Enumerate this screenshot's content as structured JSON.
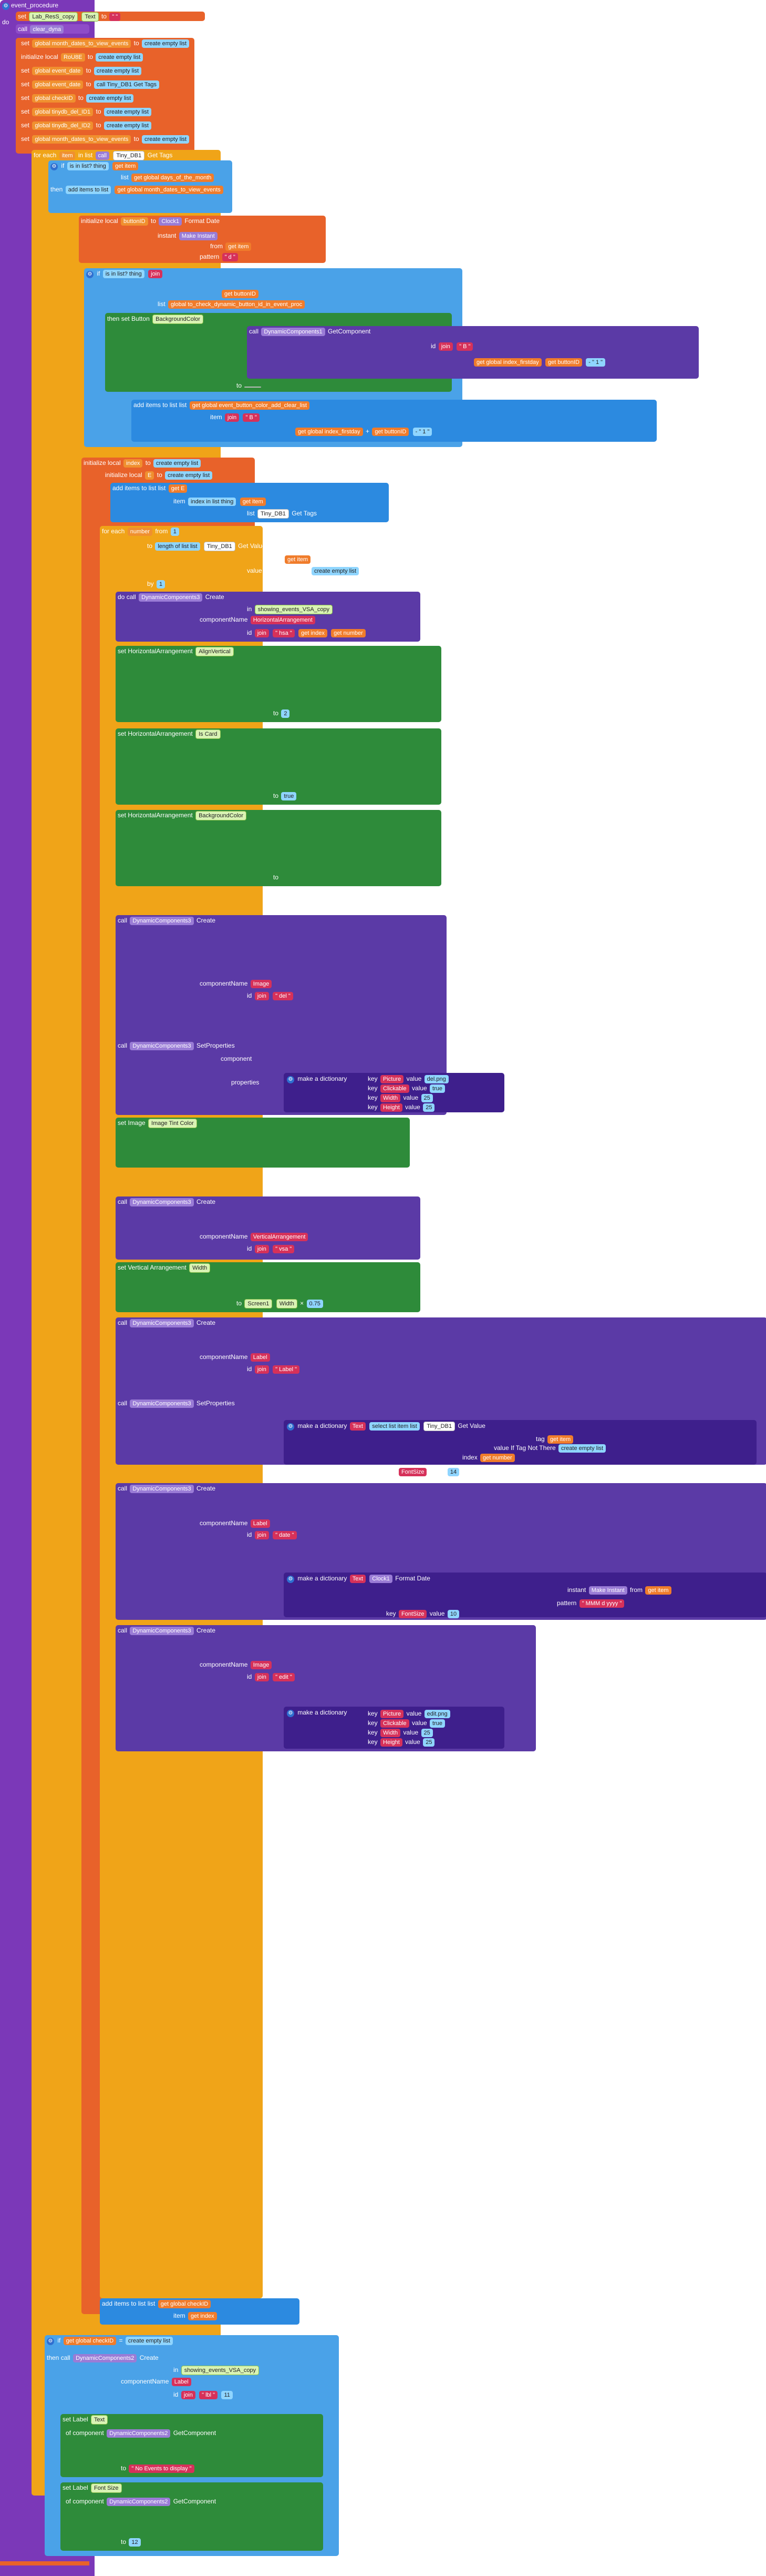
{
  "proc": {
    "title": "event_procedure",
    "do": "do",
    "set_label": "set",
    "set_list_view": "Lab_ResS_copy",
    "set_prop": "Text",
    "set_to": "to",
    "set_val": "\" \"",
    "call_clear": "call",
    "clear_dyna": "clear_dyna"
  },
  "init": [
    {
      "label": "set",
      "var": "global month_dates_to_view_events",
      "to": "to",
      "val": "create empty list"
    },
    {
      "label": "initialize local",
      "var": "RoU8E",
      "to": "to",
      "val": "create empty list"
    },
    {
      "label": "set",
      "var": "global event_date",
      "to": "to",
      "val": "create empty list"
    },
    {
      "label": "set",
      "var": "global event_date",
      "to": "to",
      "val": "call Tiny_DB1 Get Tags"
    },
    {
      "label": "set",
      "var": "global checkID",
      "to": "to",
      "val": "create empty list"
    },
    {
      "label": "set",
      "var": "global tinydb_del_ID1",
      "to": "to",
      "val": "create empty list"
    },
    {
      "label": "set",
      "var": "global tinydb_del_ID2",
      "to": "to",
      "val": "create empty list"
    },
    {
      "label": "set",
      "var": "global month_dates_to_view_events",
      "to": "to",
      "val": "create empty list"
    }
  ],
  "loop1": {
    "label": "for each",
    "item": "item",
    "in_list": "in list",
    "call": "call",
    "db": "Tiny_DB1",
    "get_tags": "Get Tags",
    "do": "do",
    "if": "if",
    "is_in_list": "is in list? thing",
    "get_item": "get item",
    "list": "list",
    "global_days": "get global days_of_the_month",
    "then": "then",
    "add_items": "add items to list",
    "global_month_dates": "get global month_dates_to_view_events",
    "item_label": "item",
    "buttonID": "buttonID",
    "format_date": "Format Date",
    "instant": "instant",
    "make_instant": "Make Instant",
    "from": "from",
    "pattern": "pattern",
    "pattern_val": "\" d \"",
    "clock": "Clock1",
    "check_btn": "global to_check_dynamic_button_id_in_event_proc",
    "set_button": "set Button",
    "bg_color": "BackgroundColor",
    "of_component": "of component",
    "dyn": "DynamicComponents1",
    "get_component": "GetComponent",
    "id": "id",
    "join": "join",
    "btn_prefix": "\" B \"",
    "global_firstday": "get global index_firstday",
    "get_buttonID": "get buttonID",
    "sub": "- \" 1 \"",
    "to": "to",
    "add_clear": "get global event_button_color_add_clear_list",
    "plus": "+",
    "one": "1"
  },
  "loop2": {
    "init_index": "initialize local",
    "index": "index",
    "to": "to",
    "create_empty": "create empty list",
    "local_E": "E",
    "add_items": "add items to list",
    "list": "list",
    "get_E": "get E",
    "item": "item",
    "get_index": "get index",
    "index_in_list": "index in list thing",
    "get_item": "get item",
    "db": "Tiny_DB1",
    "get_tags": "Get Tags",
    "for_each": "for each",
    "number": "number",
    "from": "from",
    "from_val": "1",
    "to_label": "to",
    "length": "length of list list",
    "get_value": "Get Value",
    "tag": "tag",
    "value_not_there": "value If Tag Not There",
    "by": "by",
    "by_val": "1",
    "do": "do"
  },
  "create_hz": {
    "call": "call",
    "dyn": "DynamicComponents3",
    "create": "Create",
    "in": "in",
    "in_val": "showing_events_VSA_copy",
    "component_name": "componentName",
    "cname": "HorizontalArrangement",
    "id": "id",
    "join": "join",
    "prefix": "\" hsa \"",
    "get_index": "get index",
    "get_number": "get number"
  },
  "props": [
    {
      "setter": "set HorizontalArrangement",
      "prop": "AlignVertical",
      "to": "2"
    },
    {
      "setter": "set HorizontalArrangement",
      "prop": "Is Card",
      "to": "true"
    },
    {
      "setter": "set HorizontalArrangement",
      "prop": "BackgroundColor",
      "to": ""
    }
  ],
  "create_img": {
    "name": "Image",
    "prefix": "\" del \"",
    "set_props": "SetProperties",
    "component": "component",
    "properties": "properties",
    "make_dict": "make a dictionary",
    "pairs": [
      {
        "key": "Picture",
        "value": "del.png"
      },
      {
        "key": "Clickable",
        "value": "true"
      },
      {
        "key": "Width",
        "value": "25"
      },
      {
        "key": "Height",
        "value": "25"
      }
    ],
    "tint_setter": "set Image",
    "tint_prop": "Image Tint Color"
  },
  "create_vert": {
    "name": "VerticalArrangement",
    "prefix": "\" vsa \"",
    "width_setter": "set Vertical Arrangement",
    "width_prop": "Width",
    "screen": "Screen1",
    "screen_prop": "Width",
    "times": "×",
    "factor": "0.75"
  },
  "create_label1": {
    "name": "Label",
    "prefix": "\" Label \"",
    "text_key": "Text",
    "select_list": "select list item list",
    "db": "Tiny_DB1",
    "get_value": "Get Value",
    "tag": "tag",
    "get_item": "get item",
    "not_there": "value If Tag Not There",
    "create_empty": "create empty list",
    "index": "index",
    "get_number": "get number",
    "font_key": "FontSize",
    "font_val": "14"
  },
  "create_label2": {
    "name": "Label",
    "prefix": "\" date \"",
    "text_key": "Text",
    "clock": "Clock1",
    "format_date": "Format Date",
    "instant": "instant",
    "make_instant": "Make Instant",
    "from": "from",
    "get_item": "get item",
    "pattern": "pattern",
    "pattern_val": "\" MMM d yyyy \"",
    "font_key": "FontSize",
    "font_val": "10"
  },
  "create_img2": {
    "name": "Image",
    "prefix": "\" edit \"",
    "pairs": [
      {
        "key": "Picture",
        "value": "edit.png"
      },
      {
        "key": "Clickable",
        "value": "true"
      },
      {
        "key": "Width",
        "value": "25"
      },
      {
        "key": "Height",
        "value": "25"
      }
    ]
  },
  "tail": {
    "add_items": "add items to list",
    "list": "list",
    "global_checkID": "get global checkID",
    "item": "item",
    "get_index": "get index"
  },
  "final_if": {
    "if": "if",
    "get_checkID": "get global checkID",
    "eq": "=",
    "create_empty": "create empty list",
    "then": "then",
    "call": "call",
    "dyn": "DynamicComponents2",
    "create": "Create",
    "in": "in",
    "in_val": "showing_events_VSA_copy",
    "component_name": "componentName",
    "cname": "Label",
    "id": "id",
    "join": "join",
    "prefix": "\" lbl \"",
    "num": "11",
    "set_label": "set Label",
    "text_prop": "Text",
    "of_component": "of component",
    "get_component": "GetComponent",
    "to": "to",
    "msg": "\" No Events to display \"",
    "font_prop": "Font Size",
    "font_val": "12"
  }
}
